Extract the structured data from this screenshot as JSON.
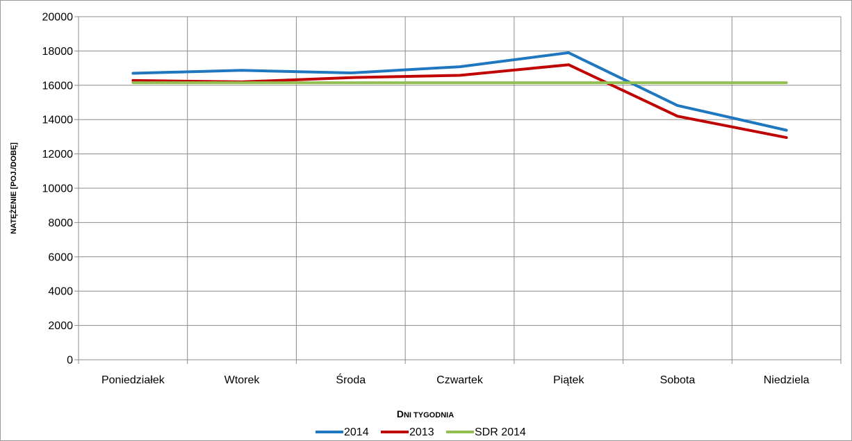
{
  "chart_data": {
    "type": "line",
    "categories": [
      "Poniedziałek",
      "Wtorek",
      "Środa",
      "Czwartek",
      "Piątek",
      "Sobota",
      "Niedziela"
    ],
    "series": [
      {
        "name": "2014",
        "color": "#1f77bf",
        "values": [
          16700,
          16870,
          16720,
          17080,
          17900,
          14820,
          13380
        ]
      },
      {
        "name": "2013",
        "color": "#c00000",
        "values": [
          16280,
          16200,
          16450,
          16580,
          17200,
          14200,
          12950
        ]
      },
      {
        "name": "SDR 2014",
        "color": "#92c050",
        "values": [
          16150,
          16150,
          16150,
          16150,
          16150,
          16150,
          16150
        ]
      }
    ],
    "yticks": [
      "0",
      "2000",
      "4000",
      "6000",
      "8000",
      "10000",
      "12000",
      "14000",
      "16000",
      "18000",
      "20000"
    ],
    "ylim": [
      0,
      20000
    ],
    "xlabel": "Dni tygodnia",
    "ylabel": "natężenie [poj./dobę]",
    "grid": true,
    "legend_position": "bottom"
  }
}
